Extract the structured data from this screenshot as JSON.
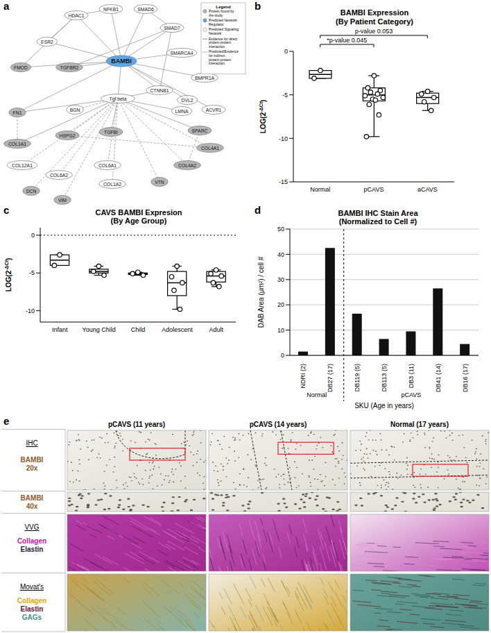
{
  "panel_a": {
    "panel": "a",
    "legend": {
      "title": "Legend",
      "items": [
        {
          "kind": "found",
          "text": "Protein found by the study"
        },
        {
          "kind": "regulator",
          "text": "Predicted Network Regulator"
        },
        {
          "kind": "predicted",
          "text": "Predicted Signaling Network"
        },
        {
          "kind": "direct",
          "text": "Evidence for direct protein-protein interaction"
        },
        {
          "kind": "indirect",
          "text": "Predicted/Evidence for indirect protein-protein interaction"
        }
      ]
    },
    "nodes": [
      {
        "label": "NFKB1",
        "kind": "predicted"
      },
      {
        "label": "SMAD6",
        "kind": "predicted"
      },
      {
        "label": "HDAC1",
        "kind": "predicted"
      },
      {
        "label": "SMAD7",
        "kind": "predicted"
      },
      {
        "label": "ESR2",
        "kind": "predicted"
      },
      {
        "label": "SMARCA4",
        "kind": "predicted"
      },
      {
        "label": "FMOD",
        "kind": "found"
      },
      {
        "label": "TGFBR2",
        "kind": "found"
      },
      {
        "label": "BAMBI",
        "kind": "regulator"
      },
      {
        "label": "BMPR1A",
        "kind": "predicted"
      },
      {
        "label": "CTNNB1",
        "kind": "predicted"
      },
      {
        "label": "DVL2",
        "kind": "predicted"
      },
      {
        "label": "Tgf beta",
        "kind": "predicted"
      },
      {
        "label": "FN1",
        "kind": "found"
      },
      {
        "label": "BGN",
        "kind": "predicted"
      },
      {
        "label": "LMNA",
        "kind": "predicted"
      },
      {
        "label": "ACVR1",
        "kind": "predicted"
      },
      {
        "label": "HSPG2",
        "kind": "found"
      },
      {
        "label": "TGFBI",
        "kind": "found"
      },
      {
        "label": "SPARC",
        "kind": "found"
      },
      {
        "label": "COL1A1",
        "kind": "found"
      },
      {
        "label": "COL12A1",
        "kind": "predicted"
      },
      {
        "label": "COL4A1",
        "kind": "found"
      },
      {
        "label": "COL6A2",
        "kind": "predicted"
      },
      {
        "label": "COL6A1",
        "kind": "predicted"
      },
      {
        "label": "COL4A2",
        "kind": "found"
      },
      {
        "label": "DCN",
        "kind": "found"
      },
      {
        "label": "COL1A2",
        "kind": "predicted"
      },
      {
        "label": "VTN",
        "kind": "found"
      },
      {
        "label": "VIM",
        "kind": "found"
      }
    ],
    "edges": {
      "direct": [
        [
          "BAMBI",
          "Tgf beta"
        ],
        [
          "BAMBI",
          "TGFBR2"
        ],
        [
          "BAMBI",
          "SMAD6"
        ],
        [
          "BAMBI",
          "SMAD7"
        ],
        [
          "BAMBI",
          "CTNNB1"
        ],
        [
          "BAMBI",
          "NFKB1"
        ],
        [
          "BAMBI",
          "HDAC1"
        ],
        [
          "BAMBI",
          "ESR2"
        ],
        [
          "BAMBI",
          "SMARCA4"
        ],
        [
          "BAMBI",
          "BMPR1A"
        ],
        [
          "BAMBI",
          "DVL2"
        ],
        [
          "BAMBI",
          "ACVR1"
        ],
        [
          "BAMBI",
          "FN1"
        ],
        [
          "BAMBI",
          "FMOD"
        ],
        [
          "Tgf beta",
          "FN1"
        ],
        [
          "Tgf beta",
          "TGFBI"
        ],
        [
          "Tgf beta",
          "SPARC"
        ],
        [
          "Tgf beta",
          "COL1A1"
        ],
        [
          "Tgf beta",
          "CTNNB1"
        ],
        [
          "Tgf beta",
          "LMNA"
        ],
        [
          "HDAC1",
          "NFKB1"
        ],
        [
          "SMAD6",
          "SMAD7"
        ],
        [
          "ESR2",
          "HDAC1"
        ],
        [
          "CTNNB1",
          "SMAD7"
        ],
        [
          "TGFBR2",
          "SMAD7"
        ],
        [
          "FMOD",
          "HDAC1"
        ]
      ],
      "indirect": [
        [
          "Tgf beta",
          "BGN"
        ],
        [
          "Tgf beta",
          "HSPG2"
        ],
        [
          "Tgf beta",
          "COL12A1"
        ],
        [
          "Tgf beta",
          "COL6A2"
        ],
        [
          "Tgf beta",
          "COL6A1"
        ],
        [
          "Tgf beta",
          "COL4A1"
        ],
        [
          "Tgf beta",
          "COL4A2"
        ],
        [
          "Tgf beta",
          "DCN"
        ],
        [
          "Tgf beta",
          "COL1A2"
        ],
        [
          "Tgf beta",
          "VTN"
        ],
        [
          "Tgf beta",
          "VIM"
        ],
        [
          "FN1",
          "COL1A1"
        ],
        [
          "HSPG2",
          "COL4A1"
        ],
        [
          "SPARC",
          "COL4A2"
        ]
      ]
    }
  },
  "chart_data": [
    {
      "panel": "b",
      "type": "box",
      "title": "BAMBI Expression",
      "subtitle": "(By Patient Category)",
      "y_label": {
        "text": "LOG(2",
        "sup": "-ΔCt",
        "end": ")"
      },
      "categories": [
        "Normal",
        "pCAVS",
        "aCAVS"
      ],
      "boxes": [
        {
          "min": -3.1,
          "q1": -3.1,
          "median": -2.65,
          "q3": -2.2,
          "max": -2.2,
          "points": [
            -2.2,
            -3.1
          ]
        },
        {
          "min": -9.8,
          "q1": -5.7,
          "median": -5.0,
          "q3": -4.2,
          "max": -2.8,
          "points": [
            -2.8,
            -4.2,
            -4.5,
            -4.7,
            -4.9,
            -5.1,
            -5.3,
            -5.5,
            -5.6,
            -6.1,
            -7.3,
            -9.8
          ]
        },
        {
          "min": -6.8,
          "q1": -6.0,
          "median": -5.3,
          "q3": -4.8,
          "max": -4.6,
          "points": [
            -4.6,
            -4.9,
            -5.3,
            -5.8,
            -6.8
          ]
        }
      ],
      "ylim": [
        -15,
        0
      ],
      "yticks": [
        -15,
        -10,
        -5,
        0
      ],
      "annotations": [
        {
          "text": "*p-value 0.045",
          "from": "Normal",
          "to": "pCAVS"
        },
        {
          "text": "p-value 0.053",
          "from": "Normal",
          "to": "aCAVS"
        }
      ]
    },
    {
      "panel": "c",
      "type": "box",
      "title": "CAVS BAMBI Expresion",
      "subtitle": "(By Age Group)",
      "y_label": {
        "text": "LOG(2",
        "sup": "-ΔCt",
        "end": ")"
      },
      "categories": [
        "Infant",
        "Young Child",
        "Child",
        "Adolescent",
        "Adult"
      ],
      "boxes": [
        {
          "min": -4.0,
          "q1": -4.0,
          "median": -3.3,
          "q3": -2.6,
          "max": -2.6,
          "points": [
            -2.6,
            -4.0
          ]
        },
        {
          "min": -5.3,
          "q1": -5.0,
          "median": -4.8,
          "q3": -4.5,
          "max": -4.1,
          "points": [
            -4.1,
            -4.8,
            -5.3
          ]
        },
        {
          "min": -5.3,
          "q1": -5.2,
          "median": -5.1,
          "q3": -5.0,
          "max": -4.9,
          "points": [
            -4.9,
            -5.1,
            -5.3
          ]
        },
        {
          "min": -9.8,
          "q1": -8.0,
          "median": -6.3,
          "q3": -4.8,
          "max": -4.1,
          "points": [
            -4.1,
            -5.5,
            -6.3,
            -7.3,
            -9.8
          ]
        },
        {
          "min": -6.8,
          "q1": -6.2,
          "median": -5.4,
          "q3": -4.8,
          "max": -4.6,
          "points": [
            -4.6,
            -5.1,
            -5.4,
            -6.3,
            -6.8
          ]
        }
      ],
      "ylim": [
        -11.5,
        1
      ],
      "yticks": [
        -10,
        -5,
        0
      ],
      "hline": 0
    },
    {
      "panel": "d",
      "type": "bar",
      "title": "BAMBI IHC Stain Area",
      "subtitle": "(Normalized to Cell #)",
      "x_label": "SKU (Age in years)",
      "y_label": "DAB Area (μm²) / cell #",
      "categories": [
        "NDRI (2)",
        "DB27 (17)",
        "DB119 (5)",
        "DB113 (5)",
        "DB3 (11)",
        "DB41 (14)",
        "DB16 (17)"
      ],
      "values": [
        1.5,
        42.5,
        16.5,
        6.5,
        9.5,
        26.5,
        4.5
      ],
      "color": "#111111",
      "ylim": [
        0,
        50
      ],
      "yticks": [
        0,
        10,
        20,
        30,
        40,
        50
      ],
      "grid": true,
      "groups": [
        {
          "label": "Normal",
          "members": [
            "NDRI (2)",
            "DB27 (17)"
          ]
        },
        {
          "label": "pCAVS",
          "members": [
            "DB119 (5)",
            "DB113 (5)",
            "DB3 (11)",
            "DB41 (14)",
            "DB16 (17)"
          ]
        }
      ]
    }
  ],
  "panel_e": {
    "panel": "e",
    "columns": [
      "pCAVS (11 years)",
      "pCAVS (14 years)",
      "Normal (17 years)"
    ],
    "rows": [
      {
        "heading": "IHC",
        "stains": [
          {
            "lines": [
              "BAMBI",
              "20x"
            ],
            "color": "#8b5a2b"
          }
        ]
      },
      {
        "stains": [
          {
            "lines": [
              "BAMBI",
              "40x"
            ],
            "color": "#8b5a2b"
          }
        ]
      },
      {
        "heading": "VVG",
        "stains": [
          {
            "lines": [
              "Collagen"
            ],
            "color": "#c2189f"
          },
          {
            "lines": [
              "Elastin"
            ],
            "color": "#2b1b3d"
          }
        ]
      },
      {
        "heading": "Movat's",
        "stains": [
          {
            "lines": [
              "Collagen"
            ],
            "color": "#e0a800"
          },
          {
            "lines": [
              "Elastin"
            ],
            "color": "#6a1030"
          },
          {
            "lines": [
              "GAGs"
            ],
            "color": "#3f8f83"
          }
        ]
      }
    ]
  }
}
